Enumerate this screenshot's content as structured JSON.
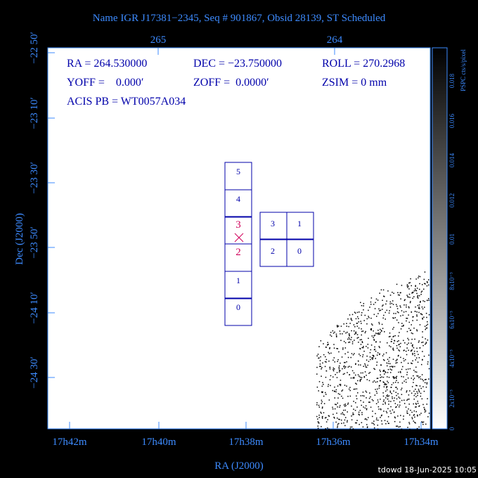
{
  "header": {
    "title": "Name IGR J17381−2345, Seq # 901867, Obsid 28139, ST Scheduled"
  },
  "axes": {
    "top_ticks": [
      "265",
      "264"
    ],
    "left_ticks": [
      "−22 50′",
      "−23 10′",
      "−23 30′",
      "−23 50′",
      "−24 10′",
      "−24 30′"
    ],
    "bottom_ticks": [
      "17h42m",
      "17h40m",
      "17h38m",
      "17h36m",
      "17h34m"
    ],
    "x_label": "RA (J2000)",
    "y_label": "Dec (J2000)"
  },
  "info": {
    "ra": "RA = 264.530000",
    "dec": "DEC = −23.750000",
    "roll": "ROLL = 270.2968",
    "yoff": "YOFF =    0.000′",
    "zoff": "ZOFF =  0.0000′",
    "zsim": "ZSIM = 0 mm",
    "acis_pb": "ACIS PB = WT0057A034"
  },
  "chips": {
    "acis_s": [
      "5",
      "4",
      "3",
      "2",
      "1",
      "0"
    ],
    "acis_i": [
      "3",
      "1",
      "2",
      "0"
    ]
  },
  "colorbar": {
    "label": "PSPC cts/s/pixel",
    "ticks": [
      "0",
      "2x10⁻³",
      "4x10⁻³",
      "6x10⁻³",
      "8x10⁻³",
      "0.01",
      "0.012",
      "0.014",
      "0.016",
      "0.018"
    ]
  },
  "footer": "tdowd 18-Jun-2025 10:05"
}
